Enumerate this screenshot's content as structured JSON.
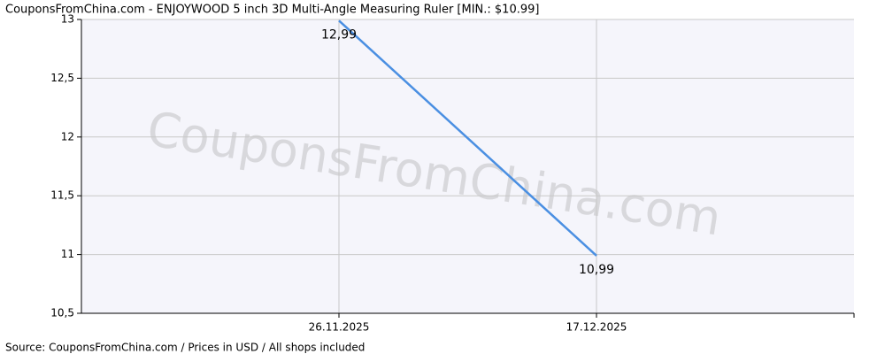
{
  "chart_data": {
    "type": "line",
    "title": "CouponsFromChina.com - ENJOYWOOD 5 inch 3D Multi-Angle Measuring Ruler [MIN.: $10.99]",
    "watermark": "CouponsFromChina.com",
    "source": "Source: CouponsFromChina.com / Prices in USD / All shops included",
    "categories": [
      "26.11.2025",
      "17.12.2025"
    ],
    "values": [
      12.99,
      10.99
    ],
    "value_labels": [
      "12,99",
      "10,99"
    ],
    "color": "#4a8fe2",
    "ylim": [
      10.5,
      13
    ],
    "yticks": [
      {
        "value": 10.5,
        "label": "10,5"
      },
      11,
      {
        "value": 11.5,
        "label": "11,5"
      },
      12,
      {
        "value": 12.5,
        "label": "12,5"
      },
      13
    ],
    "grid": true
  }
}
